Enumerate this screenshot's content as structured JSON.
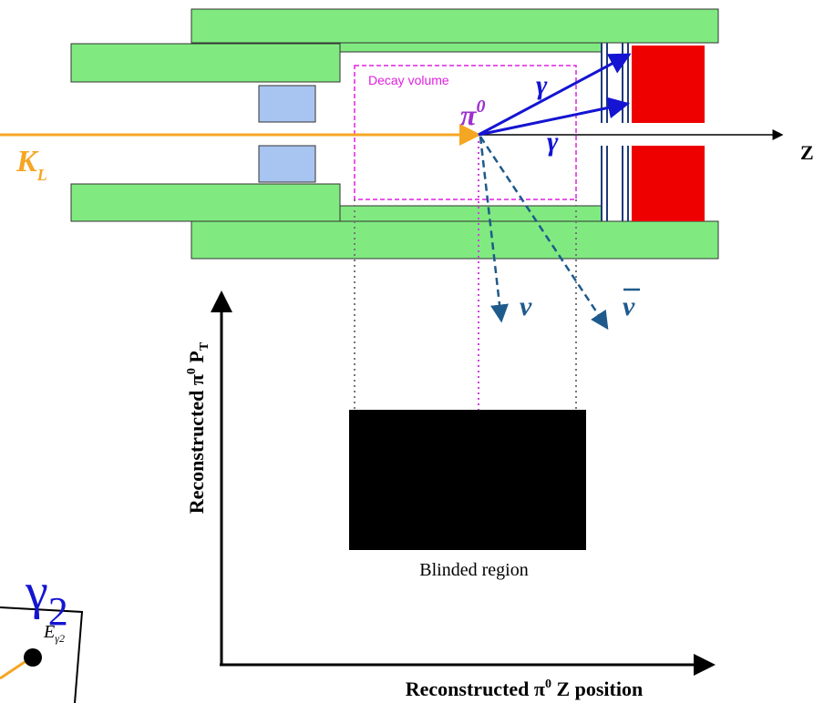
{
  "labels": {
    "decay_volume": "Decay volume",
    "pi0": {
      "symbol": "π",
      "superscript": "0"
    },
    "gamma_upper": "γ",
    "gamma_lower": "γ",
    "z_axis": "Z",
    "kl": {
      "symbol": "K",
      "subscript": "L"
    },
    "nu": "ν",
    "nubar": "ν",
    "blinded_region": "Blinded region",
    "y_axis_label": {
      "text": "Reconstructed π",
      "superscript": "0",
      "rest": " P",
      "subscript": "T"
    },
    "x_axis_label": {
      "text": "Reconstructed π",
      "superscript": "0",
      "rest": " Z position"
    },
    "gamma2": {
      "symbol": "γ",
      "subscript": "2"
    },
    "energy": {
      "symbol": "E",
      "subscript": "γ2"
    }
  }
}
